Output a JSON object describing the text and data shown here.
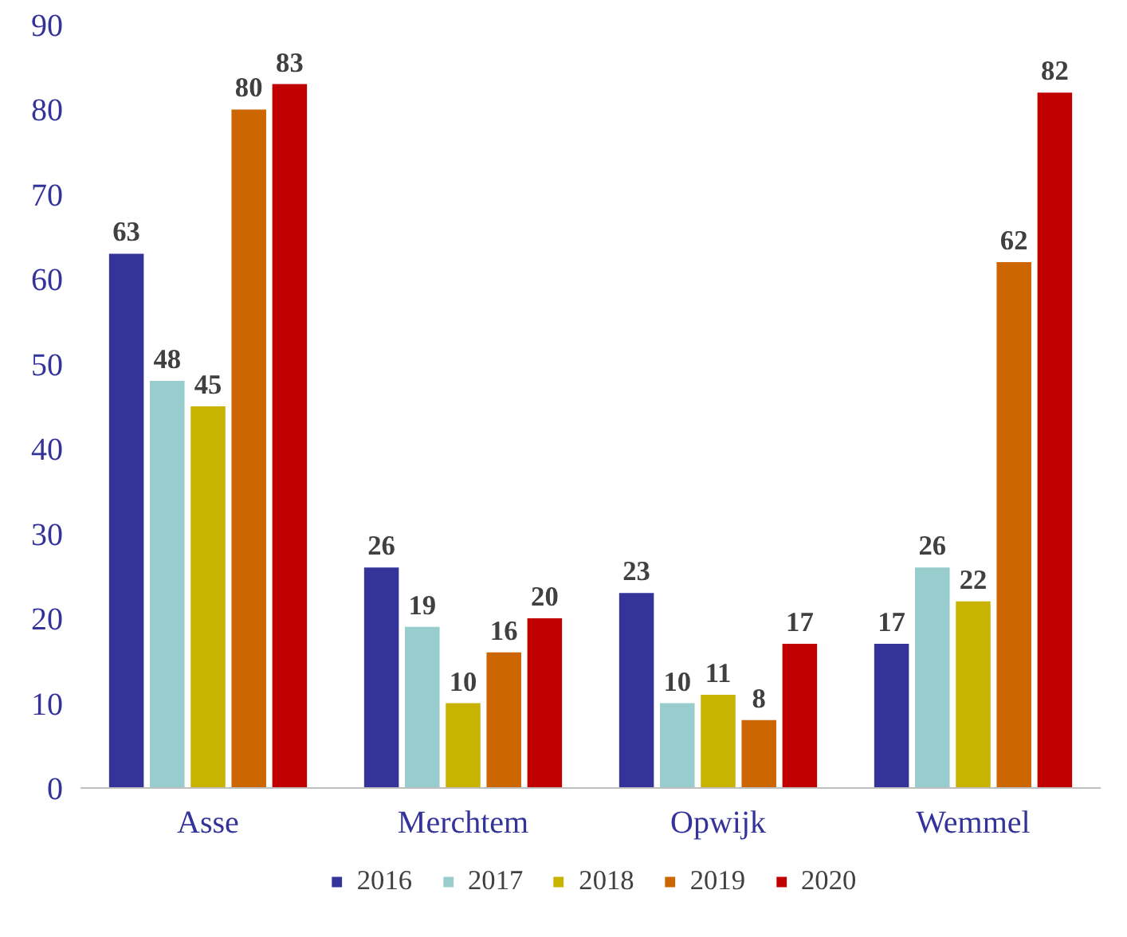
{
  "chart_data": {
    "type": "bar",
    "categories": [
      "Asse",
      "Merchtem",
      "Opwijk",
      "Wemmel"
    ],
    "series": [
      {
        "name": "2016",
        "color": "#333399",
        "values": [
          63,
          26,
          23,
          17
        ]
      },
      {
        "name": "2017",
        "color": "#99cccc",
        "values": [
          48,
          19,
          10,
          26
        ]
      },
      {
        "name": "2018",
        "color": "#c8b400",
        "values": [
          45,
          10,
          11,
          22
        ]
      },
      {
        "name": "2019",
        "color": "#cc6600",
        "values": [
          80,
          16,
          8,
          62
        ]
      },
      {
        "name": "2020",
        "color": "#c00000",
        "values": [
          83,
          20,
          17,
          82
        ]
      }
    ],
    "ylim": [
      0,
      90
    ],
    "yticks": [
      0,
      10,
      20,
      30,
      40,
      50,
      60,
      70,
      80,
      90
    ],
    "grid": false,
    "legend": "bottom",
    "data_labels": true
  }
}
